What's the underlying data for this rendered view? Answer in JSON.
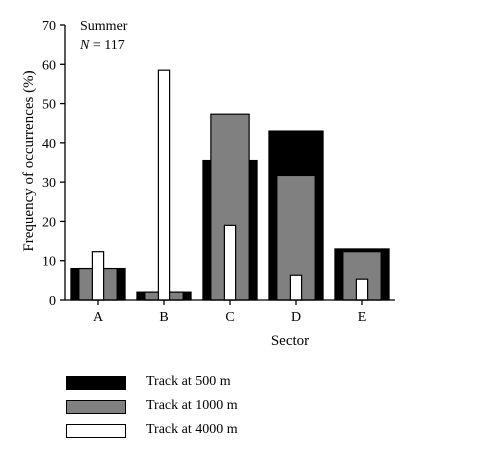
{
  "chart_data": {
    "type": "bar",
    "annotation_lines": [
      "Summer",
      "N = 117"
    ],
    "xlabel": "Sector",
    "ylabel": "Frequency of occurrences (%)",
    "ylim": [
      0,
      70
    ],
    "yticks": [
      0,
      10,
      20,
      30,
      40,
      50,
      60,
      70
    ],
    "categories": [
      "A",
      "B",
      "C",
      "D",
      "E"
    ],
    "series": [
      {
        "name": "Track at 500 m",
        "color": "#000000",
        "values": [
          8,
          2,
          35.5,
          43,
          13
        ]
      },
      {
        "name": "Track at 1000 m",
        "color": "#808080",
        "values": [
          8,
          2,
          47.3,
          31.7,
          12.3
        ]
      },
      {
        "name": "Track at 4000 m",
        "color": "#ffffff",
        "values": [
          12.3,
          58.5,
          19,
          6.3,
          5.3
        ]
      }
    ],
    "grid": false,
    "legend_position": "bottom-left"
  }
}
